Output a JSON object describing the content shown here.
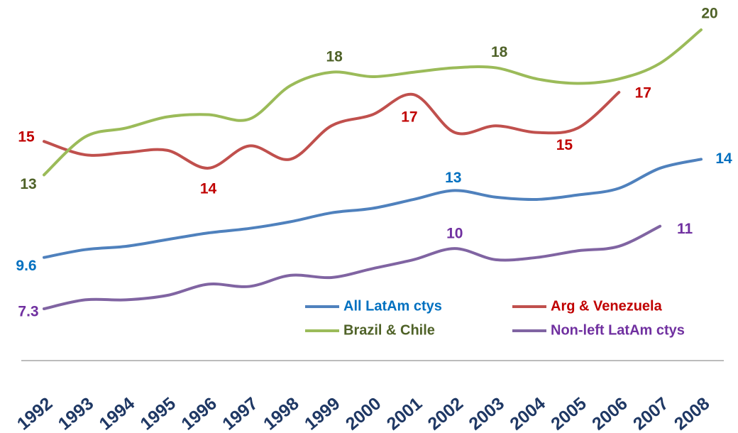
{
  "chart_data": {
    "type": "line",
    "categories": [
      "1992",
      "1993",
      "1994",
      "1995",
      "1996",
      "1997",
      "1998",
      "1999",
      "2000",
      "2001",
      "2002",
      "2003",
      "2004",
      "2005",
      "2006",
      "2007",
      "2008"
    ],
    "series": [
      {
        "name": "All LatAm ctys",
        "color": "#4f81bd",
        "label_color": "#0070c0",
        "values": [
          9.6,
          9.95,
          10.1,
          10.4,
          10.7,
          10.9,
          11.2,
          11.6,
          11.8,
          12.2,
          12.6,
          12.3,
          12.2,
          12.4,
          12.7,
          13.6,
          14.0
        ],
        "value_labels": [
          "9.6",
          null,
          null,
          null,
          null,
          null,
          null,
          null,
          null,
          null,
          "13",
          null,
          null,
          null,
          null,
          null,
          "14"
        ]
      },
      {
        "name": "Arg & Venezuela",
        "color": "#c0504d",
        "label_color": "#c00000",
        "values": [
          14.8,
          14.2,
          14.3,
          14.4,
          13.6,
          14.6,
          14.0,
          15.5,
          16.0,
          16.9,
          15.2,
          15.5,
          15.2,
          15.4,
          17.0,
          null,
          null
        ],
        "value_labels": [
          "15",
          null,
          null,
          null,
          "14",
          null,
          null,
          null,
          null,
          "17",
          null,
          null,
          null,
          "15",
          "17",
          null,
          null
        ]
      },
      {
        "name": "Brazil & Chile",
        "color": "#9bbb59",
        "label_color": "#4f6228",
        "values": [
          13.3,
          15.0,
          15.4,
          15.9,
          16.0,
          15.8,
          17.3,
          17.9,
          17.7,
          17.9,
          18.1,
          18.1,
          17.6,
          17.4,
          17.6,
          18.3,
          19.8
        ],
        "value_labels": [
          "13",
          null,
          null,
          null,
          null,
          null,
          null,
          "18",
          null,
          null,
          null,
          "18",
          null,
          null,
          null,
          null,
          "20"
        ]
      },
      {
        "name": "Non-left LatAm ctys",
        "color": "#8064a2",
        "label_color": "#7030a0",
        "values": [
          7.3,
          7.7,
          7.7,
          7.9,
          8.4,
          8.3,
          8.8,
          8.7,
          9.1,
          9.5,
          10.0,
          9.5,
          9.6,
          9.9,
          10.1,
          11.0,
          null
        ],
        "value_labels": [
          "7.3",
          null,
          null,
          null,
          null,
          null,
          null,
          null,
          null,
          null,
          "10",
          null,
          null,
          null,
          null,
          "11",
          null
        ]
      }
    ]
  }
}
